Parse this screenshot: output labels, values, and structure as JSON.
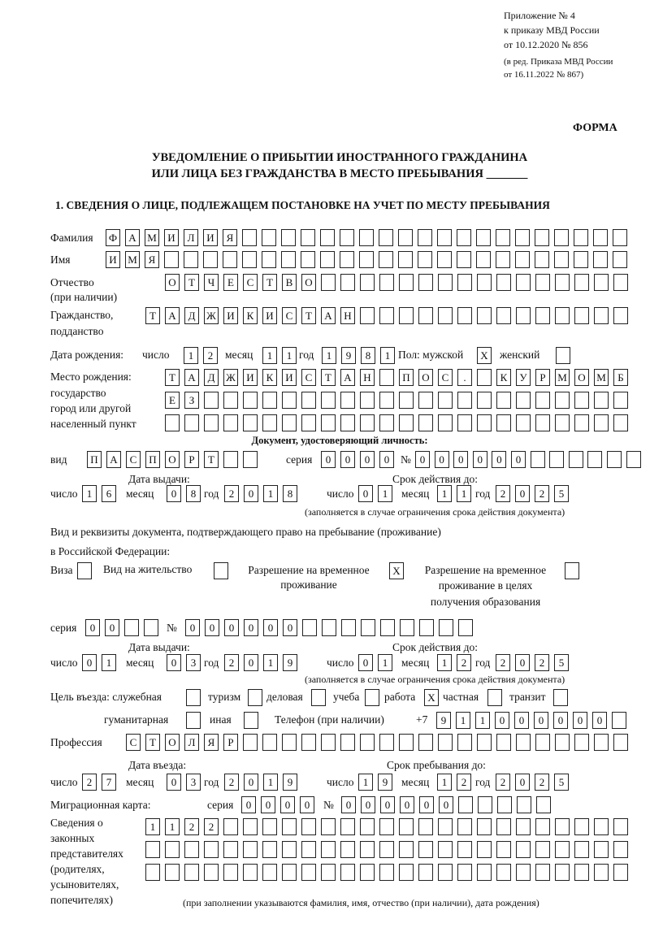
{
  "header": {
    "line1": "Приложение № 4",
    "line2": "к приказу МВД России",
    "line3": "от 10.12.2020 № 856",
    "line4": "(в ред. Приказа МВД России",
    "line5": "от 16.11.2022 № 867)",
    "form_label": "ФОРМА",
    "title1": "УВЕДОМЛЕНИЕ О ПРИБЫТИИ ИНОСТРАННОГО ГРАЖДАНИНА",
    "title2": "ИЛИ ЛИЦА БЕЗ ГРАЖДАНСТВА В МЕСТО ПРЕБЫВАНИЯ _______",
    "section1": "1. СВЕДЕНИЯ О ЛИЦЕ, ПОДЛЕЖАЩЕМ ПОСТАНОВКЕ НА УЧЕТ ПО МЕСТУ ПРЕБЫВАНИЯ"
  },
  "labels": {
    "surname": "Фамилия",
    "name": "Имя",
    "patronymic": "Отчество",
    "patronymic2": "(при наличии)",
    "citizenship": "Гражданство,",
    "citizenship2": "подданство",
    "birth_date": "Дата рождения:",
    "day": "число",
    "month": "месяц",
    "year": "год",
    "sex": "Пол: мужской",
    "female": "женский",
    "birthplace1": "Место рождения:",
    "birthplace2": "государство",
    "birthplace3": "город или другой",
    "birthplace4": "населенный пункт",
    "id_doc": "Документ, удостоверяющий личность:",
    "kind": "вид",
    "series": "серия",
    "number": "№",
    "issue_date": "Дата выдачи:",
    "valid_until": "Срок действия до:",
    "valid_note": "(заполняется в случае ограничения срока действия документа)",
    "right_doc1": "Вид и реквизиты документа, подтверждающего право на пребывание (проживание)",
    "right_doc2": "в Российской Федерации:",
    "visa": "Виза",
    "residence": "Вид на жительство",
    "trp1": "Разрешение на временное",
    "trp2": "проживание",
    "trpe1": "Разрешение на временное",
    "trpe2": "проживание в целях",
    "trpe3": "получения образования",
    "purpose": "Цель въезда: служебная",
    "tourism": "туризм",
    "business": "деловая",
    "study": "учеба",
    "work": "работа",
    "private": "частная",
    "transit": "транзит",
    "humanitarian": "гуманитарная",
    "other": "иная",
    "phone": "Телефон (при наличии)",
    "phone_prefix": "+7",
    "profession": "Профессия",
    "entry_date": "Дата въезда:",
    "stay_until": "Срок пребывания до:",
    "migration_card": "Миграционная карта:",
    "reps1": "Сведения о",
    "reps2": "законных",
    "reps3": "представителях",
    "reps4": "(родителях,",
    "reps5": "усыновителях,",
    "reps6": "попечителях)",
    "reps_note": "(при заполнении указываются фамилия, имя, отчество (при наличии), дата рождения)"
  },
  "values": {
    "surname": "ФАМИЛИЯ",
    "name": "ИМЯ",
    "patronymic": "ОТЧЕСТВО",
    "citizenship": "ТАДЖИКИСТАН",
    "birth_day": "12",
    "birth_month": "11",
    "birth_year": "1981",
    "male": "X",
    "female": "",
    "birthplace_1": "ТАДЖИКИСТАН ПОС. КУРМОМБ",
    "birthplace_2": "ЕЗ",
    "birthplace_3": "",
    "id_kind": "ПАСПОРТ",
    "id_series": "0000",
    "id_number": "000000",
    "id_issue_day": "16",
    "id_issue_month": "08",
    "id_issue_year": "2018",
    "id_valid_day": "01",
    "id_valid_month": "11",
    "id_valid_year": "2025",
    "visa": "",
    "residence": "",
    "trp": "X",
    "trpe": "",
    "rd_series": "00",
    "rd_number": "000000",
    "rd_issue_day": "01",
    "rd_issue_month": "03",
    "rd_issue_year": "2019",
    "rd_valid_day": "01",
    "rd_valid_month": "12",
    "rd_valid_year": "2025",
    "p_official": "",
    "p_tourism": "",
    "p_business": "",
    "p_study": "",
    "p_work": "X",
    "p_private": "",
    "p_transit": "",
    "p_humanitarian": "",
    "p_other": "",
    "phone": "911000000",
    "profession": "СТОЛЯР",
    "entry_day": "27",
    "entry_month": "03",
    "entry_year": "2019",
    "stay_day": "19",
    "stay_month": "12",
    "stay_year": "2025",
    "mc_series": "0000",
    "mc_number": "000000",
    "reps_1": "1122",
    "reps_2": "",
    "reps_3": ""
  }
}
